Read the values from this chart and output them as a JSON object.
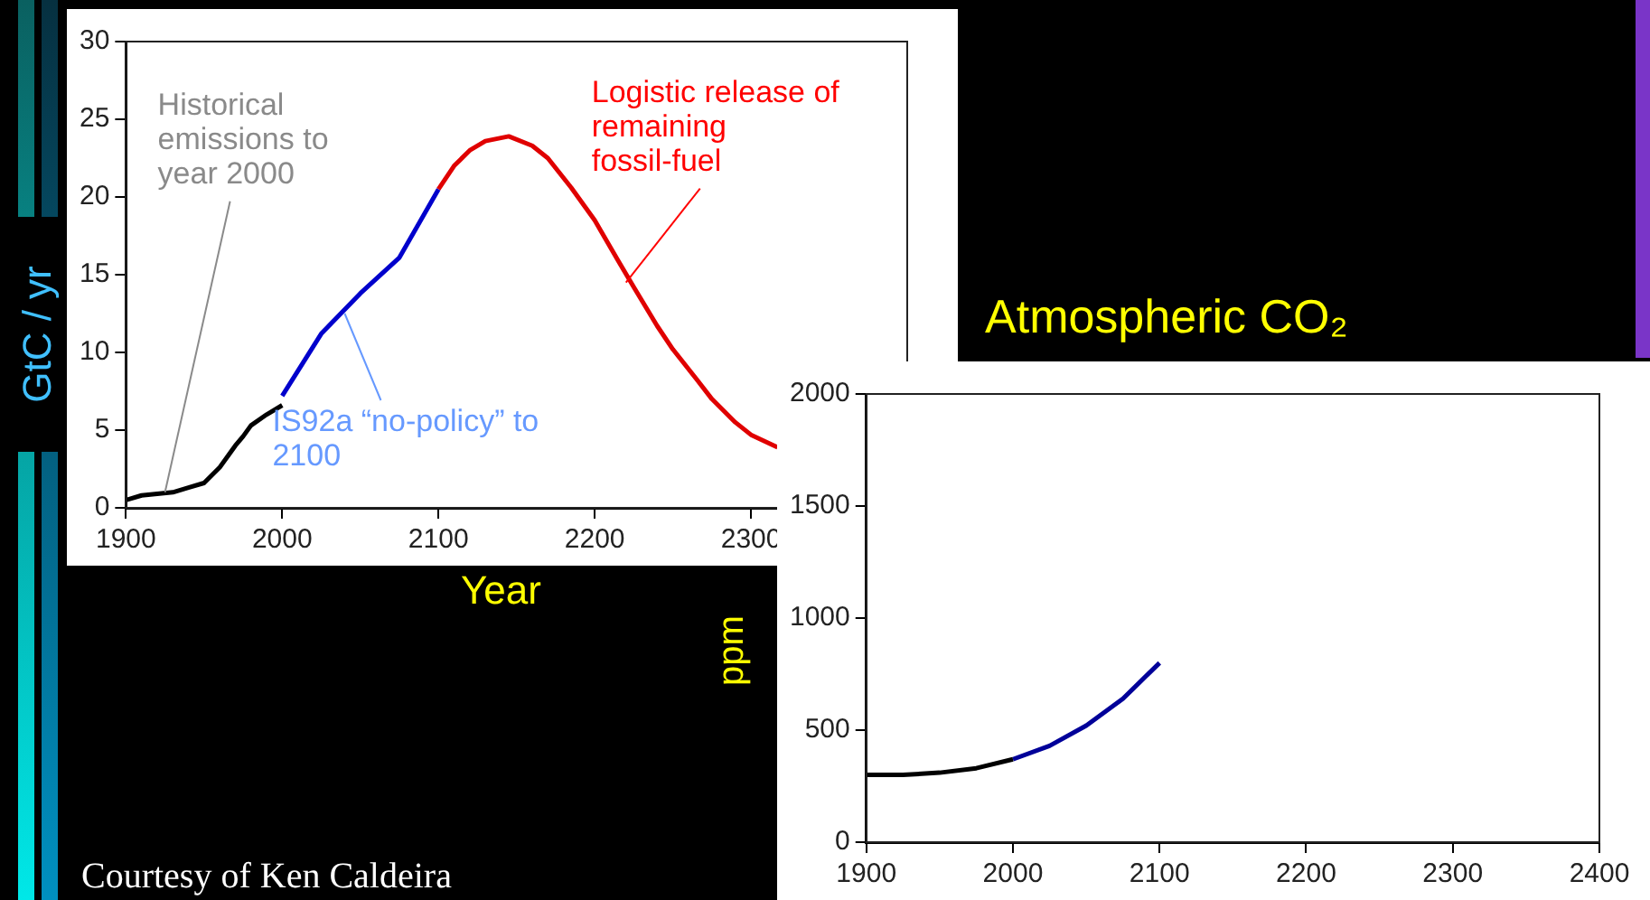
{
  "chart_data": [
    {
      "type": "line",
      "xlabel": "Year",
      "ylabel": "GtC / yr",
      "xlim": [
        1900,
        2400
      ],
      "xticks": [
        1900,
        2000,
        2100,
        2200,
        2300
      ],
      "ylim": [
        0,
        30
      ],
      "yticks": [
        0,
        5,
        10,
        15,
        20,
        25,
        30
      ],
      "series": [
        {
          "color": "#000000",
          "x": [
            1900,
            1910,
            1920,
            1930,
            1940,
            1950,
            1960,
            1970,
            1975,
            1980,
            1990,
            2000
          ],
          "values": [
            0.5,
            0.8,
            0.9,
            1.0,
            1.3,
            1.6,
            2.6,
            4.0,
            4.6,
            5.3,
            6.0,
            6.6
          ]
        },
        {
          "color": "#0000cc",
          "x": [
            2000,
            2025,
            2050,
            2075,
            2100
          ],
          "values": [
            7.2,
            11.2,
            13.8,
            16.1,
            20.5
          ]
        },
        {
          "color": "#e00000",
          "x": [
            2100,
            2110,
            2120,
            2130,
            2145,
            2160,
            2170,
            2185,
            2200,
            2215,
            2225,
            2240,
            2250,
            2265,
            2275,
            2290,
            2300,
            2317
          ],
          "values": [
            20.5,
            22.0,
            23.0,
            23.6,
            23.9,
            23.3,
            22.5,
            20.6,
            18.5,
            15.9,
            14.2,
            11.7,
            10.2,
            8.3,
            7.0,
            5.5,
            4.7,
            3.9
          ]
        }
      ],
      "annotations": [
        {
          "text": "Historical emissions to year 2000",
          "x": 1925,
          "y": 1
        },
        {
          "text": "IS92a “no-policy” to 2100",
          "x": 2040,
          "y": 12.5
        },
        {
          "text": "Logistic release of remaining fossil-fuel",
          "x": 2220,
          "y": 14.5
        },
        "Courtesy of Ken Caldeira"
      ]
    },
    {
      "type": "line",
      "title": "Atmospheric CO₂",
      "ylabel": "ppm",
      "xlim": [
        1900,
        2400
      ],
      "xticks": [
        1900,
        2000,
        2100,
        2200,
        2300,
        2400
      ],
      "ylim": [
        0,
        2000
      ],
      "yticks": [
        0,
        500,
        1000,
        1500,
        2000
      ],
      "series": [
        {
          "color": "#000000",
          "x": [
            1900,
            1925,
            1950,
            1975,
            2000
          ],
          "values": [
            300,
            300,
            310,
            330,
            370
          ]
        },
        {
          "color": "#000099",
          "x": [
            2000,
            2025,
            2050,
            2075,
            2100
          ],
          "values": [
            370,
            430,
            520,
            640,
            800
          ]
        }
      ]
    }
  ]
}
